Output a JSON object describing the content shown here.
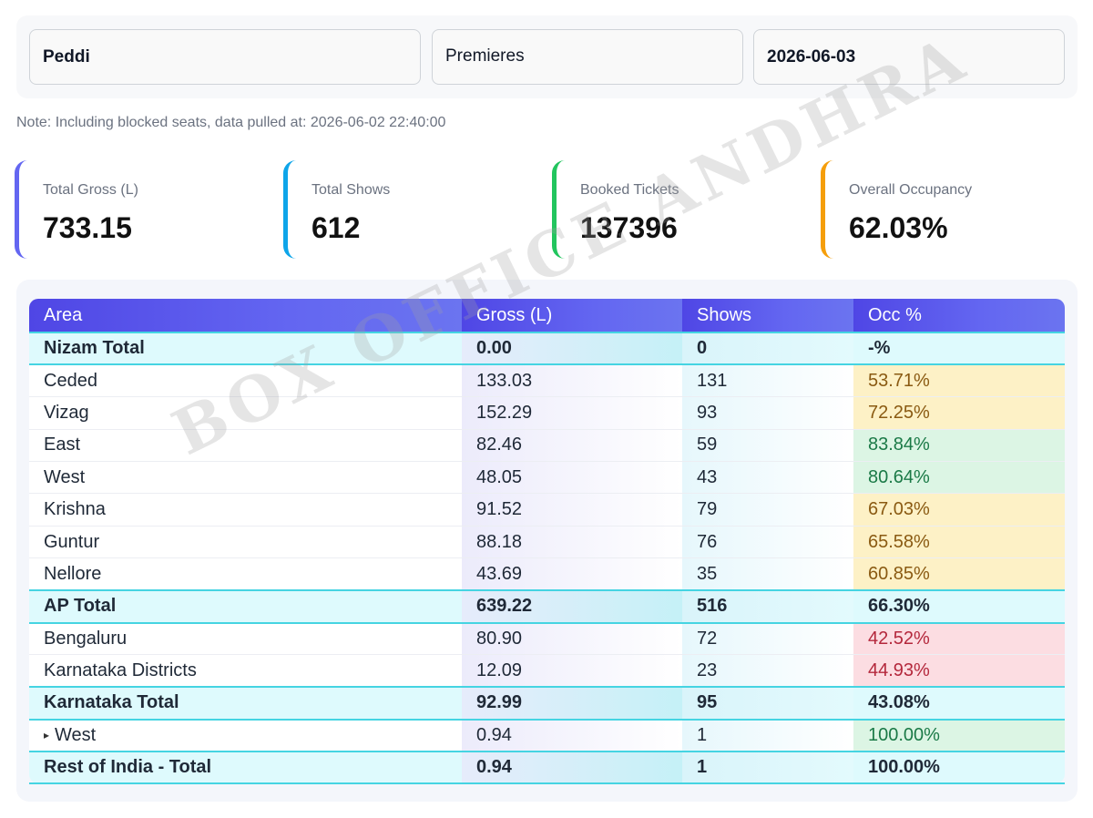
{
  "filters": {
    "movie": "Peddi",
    "show_type": "Premieres",
    "date": "2026-06-03"
  },
  "note": "Note: Including blocked seats, data pulled at: 2026-06-02 22:40:00",
  "summary": {
    "total_gross": {
      "label": "Total Gross (L)",
      "value": "733.15"
    },
    "total_shows": {
      "label": "Total Shows",
      "value": "612"
    },
    "booked_tickets": {
      "label": "Booked Tickets",
      "value": "137396"
    },
    "overall_occupancy": {
      "label": "Overall Occupancy",
      "value": "62.03%"
    }
  },
  "colors": {
    "card_gross_accent": "#6366f1",
    "card_shows_accent": "#0ea5e9",
    "card_tickets_accent": "#22c55e",
    "card_occ_accent": "#f59e0b",
    "header_bg": "#5b5ff0",
    "occ_warn": "#fdf1c6",
    "occ_good": "#dcf5e4",
    "occ_bad": "#fcdde2"
  },
  "table": {
    "headers": {
      "area": "Area",
      "gross": "Gross (L)",
      "shows": "Shows",
      "occ": "Occ %"
    },
    "rows": [
      {
        "area": "Nizam Total",
        "gross": "0.00",
        "shows": "0",
        "occ": "-%",
        "total": true
      },
      {
        "area": "Ceded",
        "gross": "133.03",
        "shows": "131",
        "occ": "53.71%",
        "level": "warn"
      },
      {
        "area": "Vizag",
        "gross": "152.29",
        "shows": "93",
        "occ": "72.25%",
        "level": "warn"
      },
      {
        "area": "East",
        "gross": "82.46",
        "shows": "59",
        "occ": "83.84%",
        "level": "good"
      },
      {
        "area": "West",
        "gross": "48.05",
        "shows": "43",
        "occ": "80.64%",
        "level": "good"
      },
      {
        "area": "Krishna",
        "gross": "91.52",
        "shows": "79",
        "occ": "67.03%",
        "level": "warn"
      },
      {
        "area": "Guntur",
        "gross": "88.18",
        "shows": "76",
        "occ": "65.58%",
        "level": "warn"
      },
      {
        "area": "Nellore",
        "gross": "43.69",
        "shows": "35",
        "occ": "60.85%",
        "level": "warn"
      },
      {
        "area": "AP Total",
        "gross": "639.22",
        "shows": "516",
        "occ": "66.30%",
        "total": true
      },
      {
        "area": "Bengaluru",
        "gross": "80.90",
        "shows": "72",
        "occ": "42.52%",
        "level": "bad"
      },
      {
        "area": "Karnataka Districts",
        "gross": "12.09",
        "shows": "23",
        "occ": "44.93%",
        "level": "bad"
      },
      {
        "area": "Karnataka Total",
        "gross": "92.99",
        "shows": "95",
        "occ": "43.08%",
        "total": true
      },
      {
        "area": "West",
        "gross": "0.94",
        "shows": "1",
        "occ": "100.00%",
        "level": "good",
        "sub": true
      },
      {
        "area": "Rest of India - Total",
        "gross": "0.94",
        "shows": "1",
        "occ": "100.00%",
        "total": true
      }
    ]
  },
  "watermark": "BOX OFFICE ANDHRA"
}
